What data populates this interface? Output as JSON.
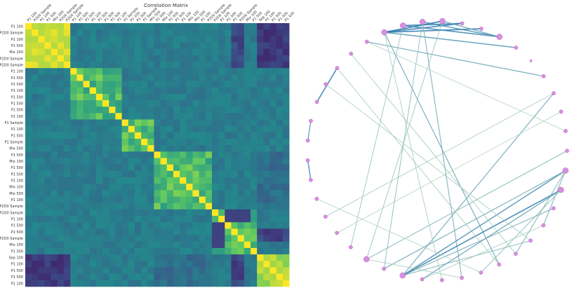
{
  "heatmap": {
    "title": "Correlation Matrix",
    "labels": [
      "P1 100",
      "P2D0 Sample",
      "P1 100",
      "P1 500",
      "Mix 200",
      "P2D0 Sample",
      "P2D0 Sample",
      "P1 100",
      "P1 500",
      "P1 500",
      "P1 100",
      "P1 500",
      "P1 500",
      "P1 500",
      "P1 100",
      "P1 Sample",
      "P1 100",
      "P1 500",
      "P1 Sample",
      "Mix 500",
      "P1 500",
      "Mix 100",
      "P1 500",
      "P1 500",
      "P1 100",
      "Mix 100",
      "Mix 500",
      "P1 100",
      "P2D0 Sample",
      "P2D0 Sample",
      "P1 100",
      "P1 500",
      "P1 500",
      "P2D0 Sample",
      "Mix 100",
      "P1 500",
      "Sep 100",
      "P1 100",
      "P1 500",
      "P1 500",
      "P1 100"
    ]
  },
  "network": {
    "node_count": 41,
    "edges": [
      {
        "a": 0,
        "b": 3,
        "w": 0.95
      },
      {
        "a": 0,
        "b": 4,
        "w": 0.9
      },
      {
        "a": 0,
        "b": 5,
        "w": 0.9
      },
      {
        "a": 1,
        "b": 4,
        "w": 0.85
      },
      {
        "a": 1,
        "b": 6,
        "w": 0.8
      },
      {
        "a": 2,
        "b": 6,
        "w": 0.75
      },
      {
        "a": 0,
        "b": 7,
        "w": 0.7
      },
      {
        "a": 3,
        "b": 6,
        "w": 0.6
      },
      {
        "a": 0,
        "b": 20,
        "w": 0.55
      },
      {
        "a": 2,
        "b": 22,
        "w": 0.5
      },
      {
        "a": 9,
        "b": 40,
        "w": 0.55
      },
      {
        "a": 25,
        "b": 10,
        "w": 0.55
      },
      {
        "a": 25,
        "b": 18,
        "w": 0.45
      },
      {
        "a": 25,
        "b": 16,
        "w": 0.5
      },
      {
        "a": 25,
        "b": 15,
        "w": 0.85
      },
      {
        "a": 25,
        "b": 14,
        "w": 0.75
      },
      {
        "a": 24,
        "b": 15,
        "w": 0.6
      },
      {
        "a": 26,
        "b": 14,
        "w": 0.55
      },
      {
        "a": 27,
        "b": 13,
        "w": 0.45
      },
      {
        "a": 14,
        "b": 17,
        "w": 0.5
      },
      {
        "a": 14,
        "b": 19,
        "w": 0.45
      },
      {
        "a": 15,
        "b": 21,
        "w": 0.4
      },
      {
        "a": 26,
        "b": 2,
        "w": 0.4
      },
      {
        "a": 27,
        "b": 3,
        "w": 0.35
      },
      {
        "a": 28,
        "b": 1,
        "w": 0.35
      },
      {
        "a": 36,
        "b": 38,
        "w": 0.85
      },
      {
        "a": 32,
        "b": 33,
        "w": 0.75
      },
      {
        "a": 34,
        "b": 35,
        "w": 0.65
      },
      {
        "a": 10,
        "b": 30,
        "w": 0.3
      },
      {
        "a": 19,
        "b": 39,
        "w": 0.3
      },
      {
        "a": 20,
        "b": 38,
        "w": 0.3
      },
      {
        "a": 11,
        "b": 29,
        "w": 0.25
      },
      {
        "a": 12,
        "b": 40,
        "w": 0.25
      },
      {
        "a": 23,
        "b": 0,
        "w": 0.3
      },
      {
        "a": 18,
        "b": 37,
        "w": 0.3
      },
      {
        "a": 21,
        "b": 31,
        "w": 0.25
      },
      {
        "a": 17,
        "b": 24,
        "w": 0.3
      },
      {
        "a": 22,
        "b": 27,
        "w": 0.3
      }
    ]
  }
}
